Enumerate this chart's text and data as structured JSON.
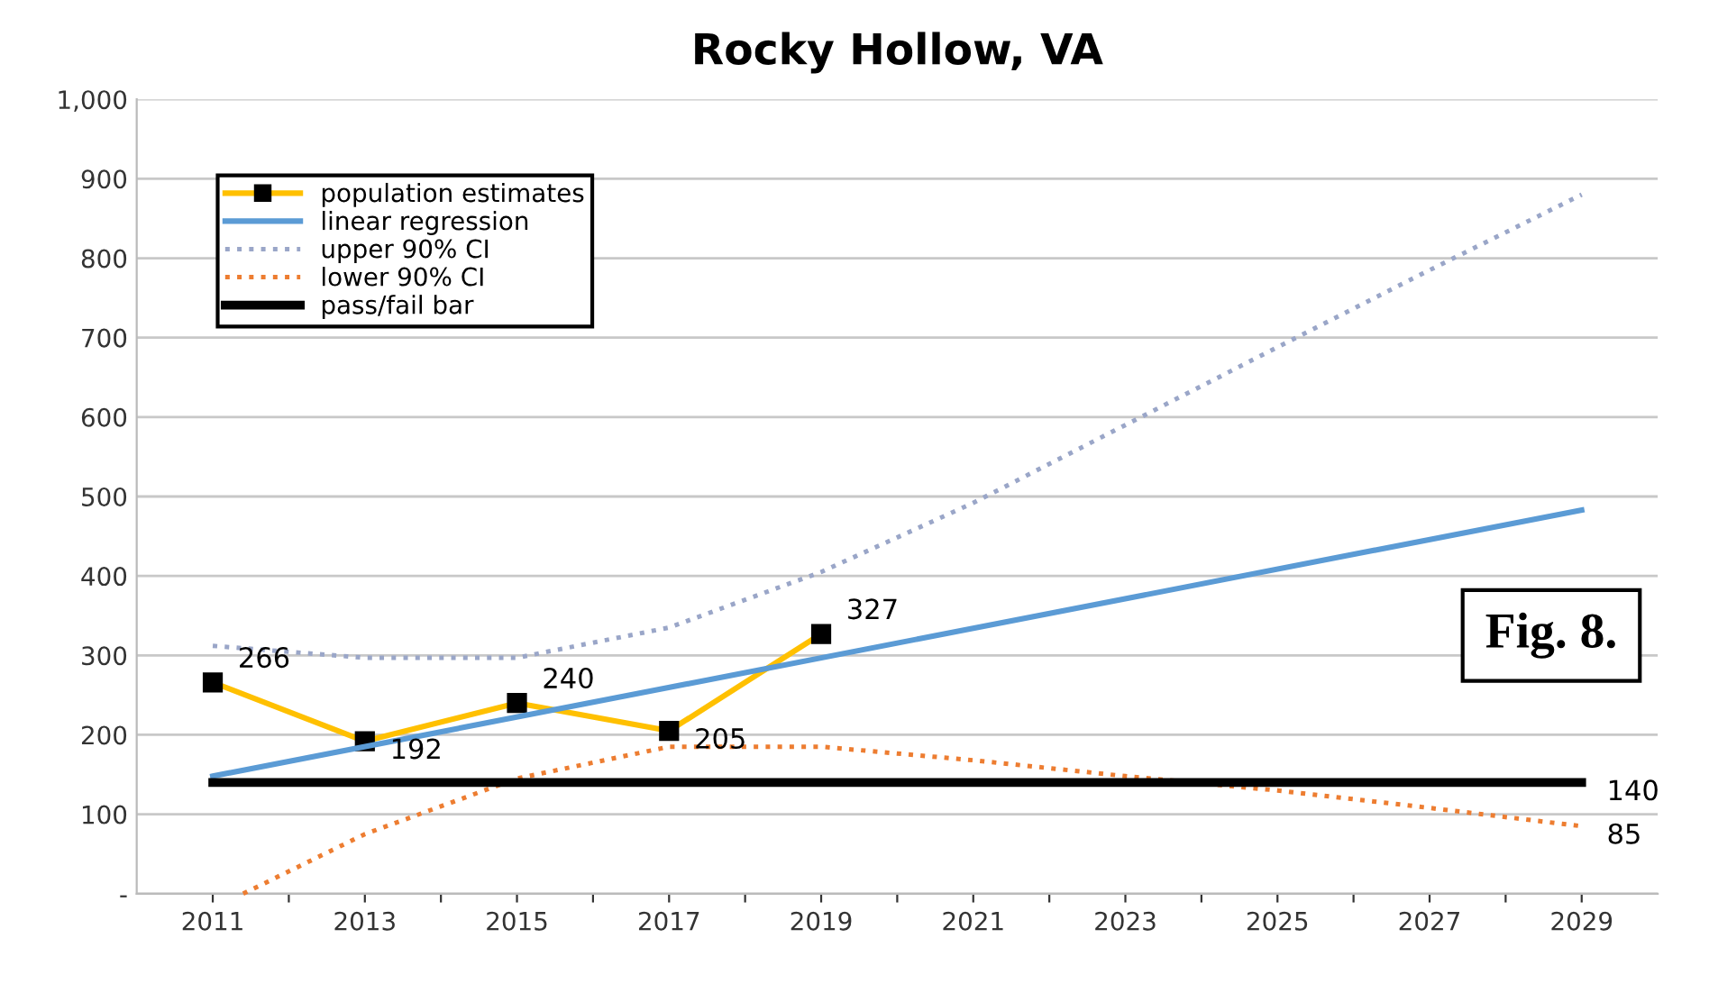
{
  "chart_data": {
    "type": "line",
    "title": "Rocky Hollow, VA",
    "xlim": [
      2010,
      2030
    ],
    "xticks": [
      2011,
      {
        "value": 2012,
        "label": null
      },
      2013,
      {
        "value": 2014,
        "label": null
      },
      2015,
      {
        "value": 2016,
        "label": null
      },
      2017,
      {
        "value": 2018,
        "label": null
      },
      2019,
      {
        "value": 2020,
        "label": null
      },
      2021,
      {
        "value": 2022,
        "label": null
      },
      2023,
      {
        "value": 2024,
        "label": null
      },
      2025,
      {
        "value": 2026,
        "label": null
      },
      2027,
      {
        "value": 2028,
        "label": null
      },
      2029
    ],
    "ylim": [
      0,
      1000
    ],
    "yticks": [
      {
        "value": 0,
        "label": "-"
      },
      100,
      200,
      300,
      400,
      500,
      600,
      700,
      800,
      900,
      {
        "value": 1000,
        "label": "1,000"
      }
    ],
    "grid": "y",
    "legend": "top left",
    "annotations": [
      "Fig. 8."
    ],
    "series": [
      {
        "name": "population estimates",
        "color": "#ffc000",
        "marker": "square",
        "line_style": "solid",
        "x": [
          2011,
          2013,
          2015,
          2017,
          2019
        ],
        "values": [
          266,
          192,
          240,
          205,
          327
        ],
        "value_labels": [
          "266",
          "192",
          "240",
          "205",
          "327"
        ]
      },
      {
        "name": "linear regression",
        "color": "#5b9bd5",
        "line_style": "solid",
        "x": [
          2011,
          2029
        ],
        "values": [
          148,
          483
        ]
      },
      {
        "name": "upper 90% CI",
        "color": "#9aa6c8",
        "line_style": "dotted",
        "x": [
          2011,
          2013,
          2015,
          2017,
          2019,
          2021,
          2023,
          2025,
          2027,
          2029
        ],
        "values": [
          312,
          297,
          297,
          335,
          405,
          492,
          590,
          688,
          785,
          880
        ]
      },
      {
        "name": "lower 90% CI",
        "color": "#ed7d31",
        "line_style": "dotted",
        "x": [
          2011.4,
          2013,
          2015,
          2017,
          2019,
          2021,
          2023,
          2025,
          2027,
          2029
        ],
        "values": [
          0,
          75,
          145,
          185,
          185,
          168,
          148,
          130,
          108,
          85
        ],
        "value_labels": [
          null,
          null,
          null,
          null,
          null,
          null,
          null,
          null,
          null,
          "85"
        ]
      },
      {
        "name": "pass/fail bar",
        "color": "#000000",
        "line_style": "solid",
        "x": [
          2011,
          2029
        ],
        "values": [
          140,
          140
        ],
        "value_labels": [
          null,
          "140"
        ]
      }
    ]
  }
}
